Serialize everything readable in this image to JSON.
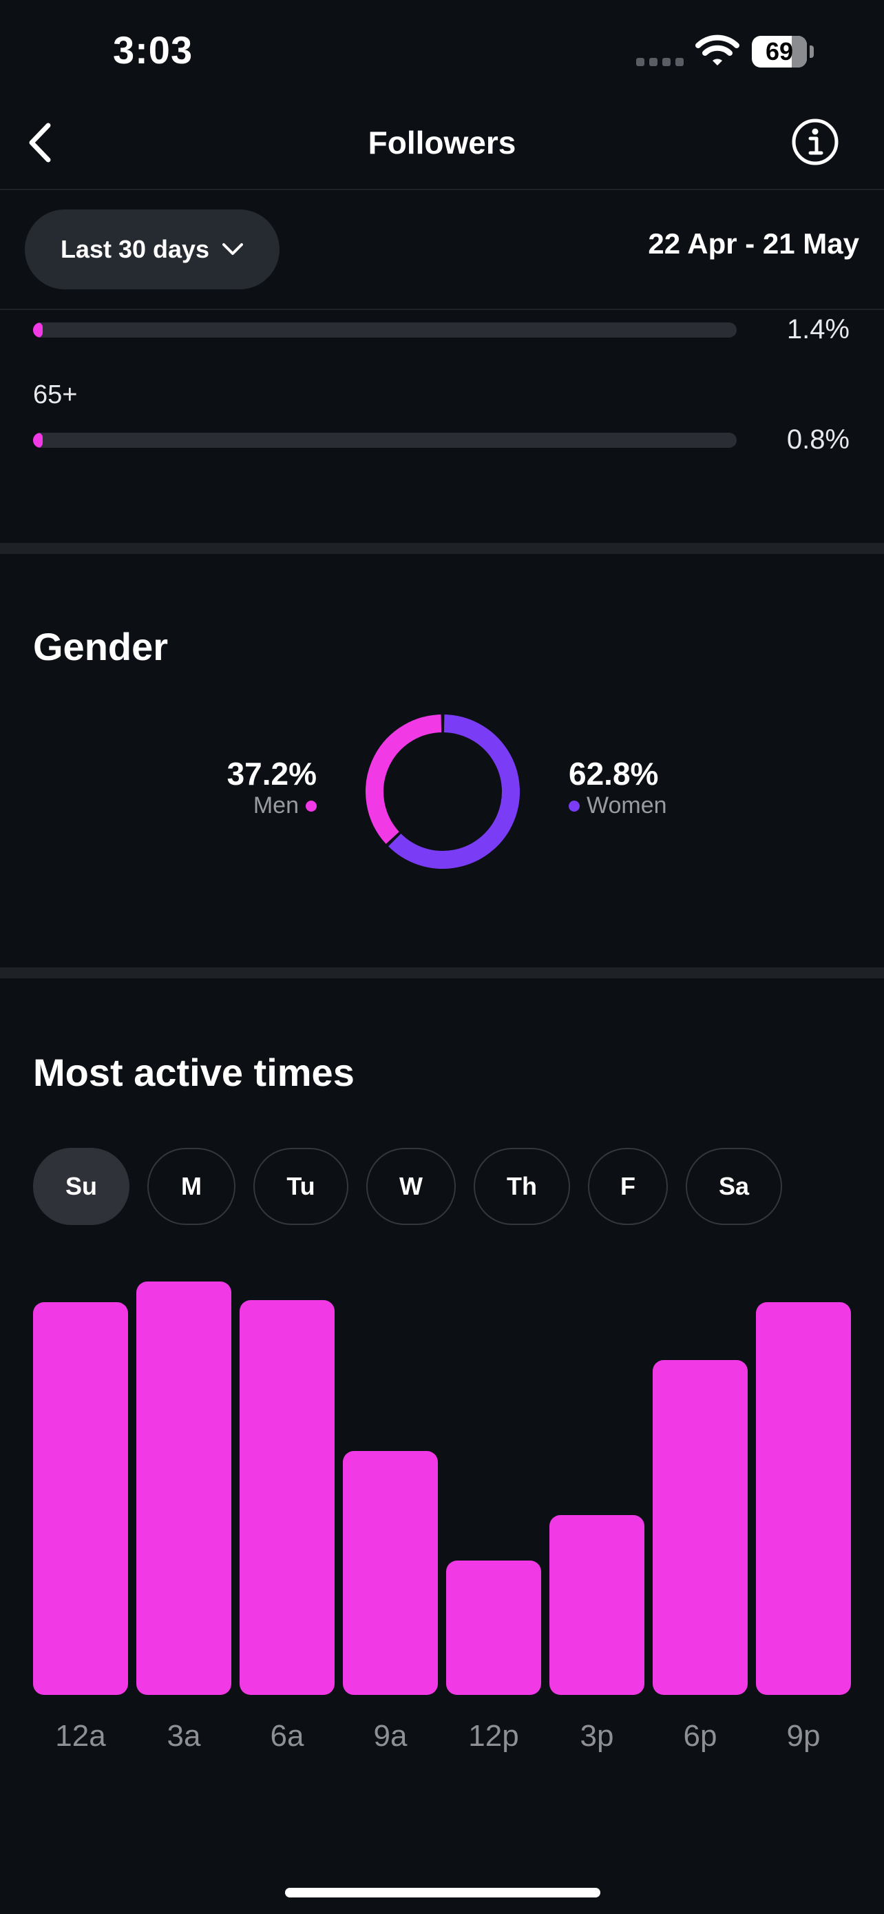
{
  "status_bar": {
    "time": "3:03",
    "battery": "69"
  },
  "nav": {
    "title": "Followers",
    "back_icon": "chevron-left-icon",
    "info_icon": "info-icon"
  },
  "filter": {
    "range_label": "Last 30 days",
    "date_range": "22 Apr - 21 May"
  },
  "age_groups": [
    {
      "label": "",
      "percent_label": "1.4%",
      "fraction": 0.014
    },
    {
      "label": "65+",
      "percent_label": "0.8%",
      "fraction": 0.008
    }
  ],
  "gender": {
    "title": "Gender",
    "men": {
      "percent": "37.2%",
      "label": "Men",
      "value": 37.2,
      "color": "#f13ae6"
    },
    "women": {
      "percent": "62.8%",
      "label": "Women",
      "value": 62.8,
      "color": "#7b3cf6"
    }
  },
  "active_times": {
    "title": "Most active times",
    "days": [
      "Su",
      "M",
      "Tu",
      "W",
      "Th",
      "F",
      "Sa"
    ],
    "selected_day": "Su"
  },
  "chart_data": {
    "type": "bar",
    "categories": [
      "12a",
      "3a",
      "6a",
      "9a",
      "12p",
      "3p",
      "6p",
      "9p"
    ],
    "values": [
      95,
      100,
      95.5,
      59,
      32.5,
      43.5,
      81,
      95
    ],
    "ylim": [
      0,
      100
    ],
    "color": "#f13ae6",
    "grid": false
  }
}
